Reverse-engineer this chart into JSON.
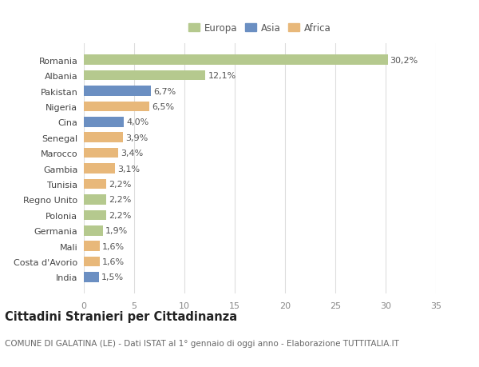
{
  "countries": [
    "Romania",
    "Albania",
    "Pakistan",
    "Nigeria",
    "Cina",
    "Senegal",
    "Marocco",
    "Gambia",
    "Tunisia",
    "Regno Unito",
    "Polonia",
    "Germania",
    "Mali",
    "Costa d'Avorio",
    "India"
  ],
  "values": [
    30.2,
    12.1,
    6.7,
    6.5,
    4.0,
    3.9,
    3.4,
    3.1,
    2.2,
    2.2,
    2.2,
    1.9,
    1.6,
    1.6,
    1.5
  ],
  "labels": [
    "30,2%",
    "12,1%",
    "6,7%",
    "6,5%",
    "4,0%",
    "3,9%",
    "3,4%",
    "3,1%",
    "2,2%",
    "2,2%",
    "2,2%",
    "1,9%",
    "1,6%",
    "1,6%",
    "1,5%"
  ],
  "continents": [
    "Europa",
    "Europa",
    "Asia",
    "Africa",
    "Asia",
    "Africa",
    "Africa",
    "Africa",
    "Africa",
    "Europa",
    "Europa",
    "Europa",
    "Africa",
    "Africa",
    "Asia"
  ],
  "continent_colors": {
    "Europa": "#b5c98e",
    "Asia": "#6b8fc2",
    "Africa": "#e8b87a"
  },
  "legend_labels": [
    "Europa",
    "Asia",
    "Africa"
  ],
  "legend_colors": [
    "#b5c98e",
    "#6b8fc2",
    "#e8b87a"
  ],
  "title": "Cittadini Stranieri per Cittadinanza",
  "subtitle": "COMUNE DI GALATINA (LE) - Dati ISTAT al 1° gennaio di oggi anno - Elaborazione TUTTITALIA.IT",
  "xlim": [
    0,
    35
  ],
  "xticks": [
    0,
    5,
    10,
    15,
    20,
    25,
    30,
    35
  ],
  "bg_color": "#ffffff",
  "plot_bg_color": "#ffffff",
  "grid_color": "#dddddd",
  "label_fontsize": 8,
  "tick_fontsize": 8,
  "title_fontsize": 10.5,
  "subtitle_fontsize": 7.5,
  "bar_height": 0.65
}
